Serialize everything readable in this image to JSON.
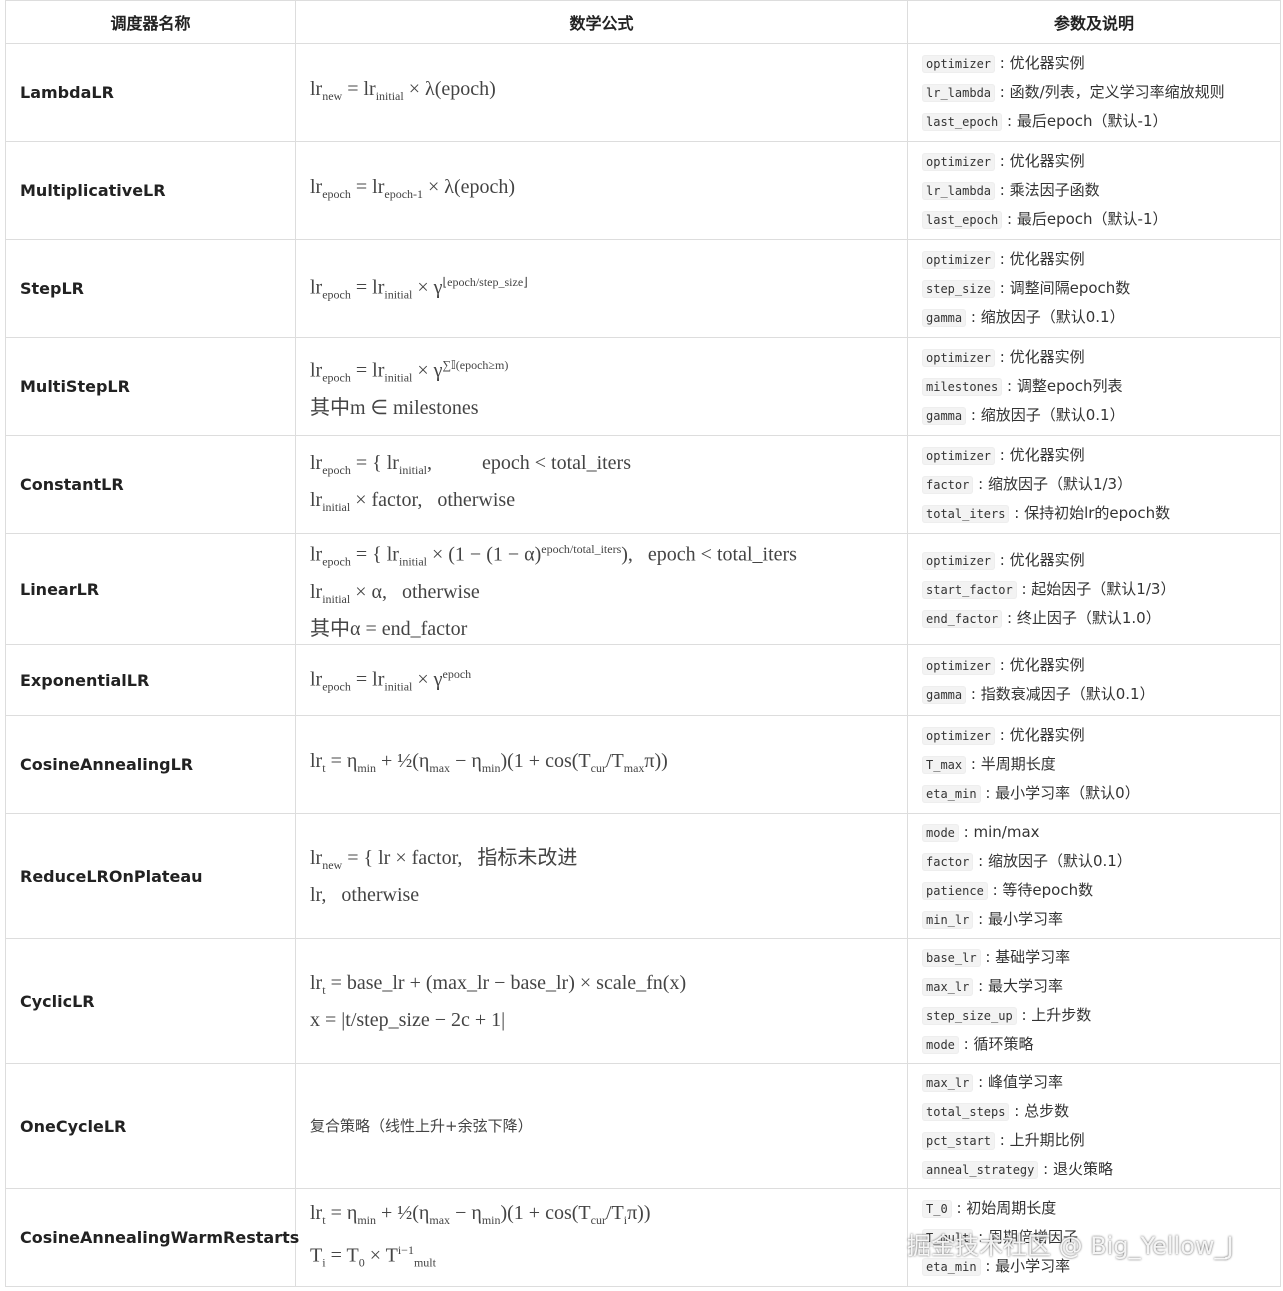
{
  "table": {
    "headers": [
      "调度器名称",
      "数学公式",
      "参数及说明"
    ],
    "rows": [
      {
        "name": "LambdaLR",
        "formula": [
          [
            "lr",
            {
              "sub": "new"
            },
            " = lr",
            {
              "sub": "initial"
            },
            " × λ(epoch)"
          ]
        ],
        "params": [
          [
            "optimizer",
            "优化器实例"
          ],
          [
            "lr_lambda",
            "函数/列表，定义学习率缩放规则"
          ],
          [
            "last_epoch",
            "最后epoch（默认-1）"
          ]
        ]
      },
      {
        "name": "MultiplicativeLR",
        "formula": [
          [
            "lr",
            {
              "sub": "epoch"
            },
            " = lr",
            {
              "sub": "epoch-1"
            },
            " × λ(epoch)"
          ]
        ],
        "params": [
          [
            "optimizer",
            "优化器实例"
          ],
          [
            "lr_lambda",
            "乘法因子函数"
          ],
          [
            "last_epoch",
            "最后epoch（默认-1）"
          ]
        ]
      },
      {
        "name": "StepLR",
        "formula": [
          [
            "lr",
            {
              "sub": "epoch"
            },
            " = lr",
            {
              "sub": "initial"
            },
            " × γ",
            {
              "sup": "⌊epoch/step_size⌋"
            }
          ]
        ],
        "params": [
          [
            "optimizer",
            "优化器实例"
          ],
          [
            "step_size",
            "调整间隔epoch数"
          ],
          [
            "gamma",
            "缩放因子（默认0.1）"
          ]
        ]
      },
      {
        "name": "MultiStepLR",
        "formula": [
          [
            "lr",
            {
              "sub": "epoch"
            },
            " = lr",
            {
              "sub": "initial"
            },
            " × γ",
            {
              "sup": "∑𝕀(epoch≥m)"
            }
          ],
          [
            "其中m ∈ milestones"
          ]
        ],
        "params": [
          [
            "optimizer",
            "优化器实例"
          ],
          [
            "milestones",
            "调整epoch列表"
          ],
          [
            "gamma",
            "缩放因子（默认0.1）"
          ]
        ]
      },
      {
        "name": "ConstantLR",
        "formula": [
          [
            "lr",
            {
              "sub": "epoch"
            },
            " = { lr",
            {
              "sub": "initial"
            },
            ",          epoch < total_iters"
          ],
          [
            "lr",
            {
              "sub": "initial"
            },
            " × factor,   otherwise"
          ]
        ],
        "params": [
          [
            "optimizer",
            "优化器实例"
          ],
          [
            "factor",
            "缩放因子（默认1/3）"
          ],
          [
            "total_iters",
            "保持初始lr的epoch数"
          ]
        ]
      },
      {
        "name": "LinearLR",
        "formula": [
          [
            "lr",
            {
              "sub": "epoch"
            },
            " = { lr",
            {
              "sub": "initial"
            },
            " × (1 − (1 − α)",
            {
              "sup": "epoch/total_iters"
            },
            "),   epoch < total_iters"
          ],
          [
            "lr",
            {
              "sub": "initial"
            },
            " × α,   otherwise"
          ],
          [
            "其中α = end_factor"
          ]
        ],
        "params": [
          [
            "optimizer",
            "优化器实例"
          ],
          [
            "start_factor",
            "起始因子（默认1/3）"
          ],
          [
            "end_factor",
            "终止因子（默认1.0）"
          ]
        ]
      },
      {
        "name": "ExponentialLR",
        "formula": [
          [
            "lr",
            {
              "sub": "epoch"
            },
            " = lr",
            {
              "sub": "initial"
            },
            " × γ",
            {
              "sup": "epoch"
            }
          ]
        ],
        "params": [
          [
            "optimizer",
            "优化器实例"
          ],
          [
            "gamma",
            "指数衰减因子（默认0.1）"
          ]
        ]
      },
      {
        "name": "CosineAnnealingLR",
        "formula": [
          [
            "lr",
            {
              "sub": "t"
            },
            " = η",
            {
              "sub": "min"
            },
            " + ½(η",
            {
              "sub": "max"
            },
            " − η",
            {
              "sub": "min"
            },
            ")(1 + cos(T",
            {
              "sub": "cur"
            },
            "/T",
            {
              "sub": "max"
            },
            "π))"
          ]
        ],
        "params": [
          [
            "optimizer",
            "优化器实例"
          ],
          [
            "T_max",
            "半周期长度"
          ],
          [
            "eta_min",
            "最小学习率（默认0）"
          ]
        ]
      },
      {
        "name": "ReduceLROnPlateau",
        "formula": [
          [
            "lr",
            {
              "sub": "new"
            },
            " = { lr × factor,   指标未改进"
          ],
          [
            "lr,   otherwise"
          ]
        ],
        "params": [
          [
            "mode",
            "min/max"
          ],
          [
            "factor",
            "缩放因子（默认0.1）"
          ],
          [
            "patience",
            "等待epoch数"
          ],
          [
            "min_lr",
            "最小学习率"
          ]
        ]
      },
      {
        "name": "CyclicLR",
        "formula": [
          [
            "lr",
            {
              "sub": "t"
            },
            " = base_lr + (max_lr − base_lr) × scale_fn(x)"
          ],
          [
            "x = |t/step_size − 2c + 1|"
          ]
        ],
        "params": [
          [
            "base_lr",
            "基础学习率"
          ],
          [
            "max_lr",
            "最大学习率"
          ],
          [
            "step_size_up",
            "上升步数"
          ],
          [
            "mode",
            "循环策略"
          ]
        ]
      },
      {
        "name": "OneCycleLR",
        "formula": [
          [
            "复合策略（线性上升+余弦下降）"
          ]
        ],
        "params": [
          [
            "max_lr",
            "峰值学习率"
          ],
          [
            "total_steps",
            "总步数"
          ],
          [
            "pct_start",
            "上升期比例"
          ],
          [
            "anneal_strategy",
            "退火策略"
          ]
        ]
      },
      {
        "name": "CosineAnnealingWarmRestarts",
        "formula": [
          [
            "lr",
            {
              "sub": "t"
            },
            " = η",
            {
              "sub": "min"
            },
            " + ½(η",
            {
              "sub": "max"
            },
            " − η",
            {
              "sub": "min"
            },
            ")(1 + cos(T",
            {
              "sub": "cur"
            },
            "/T",
            {
              "sub": "i"
            },
            "π))"
          ],
          [
            "T",
            {
              "sub": "i"
            },
            " = T",
            {
              "sub": "0"
            },
            " × T",
            {
              "sup": "i−1"
            },
            {
              "sub": "mult"
            }
          ]
        ],
        "params": [
          [
            "T_0",
            "初始周期长度"
          ],
          [
            "T_mult",
            "周期倍增因子"
          ],
          [
            "eta_min",
            "最小学习率"
          ]
        ]
      }
    ]
  },
  "watermark": "掘金技术社区 @ Big_Yellow_J"
}
